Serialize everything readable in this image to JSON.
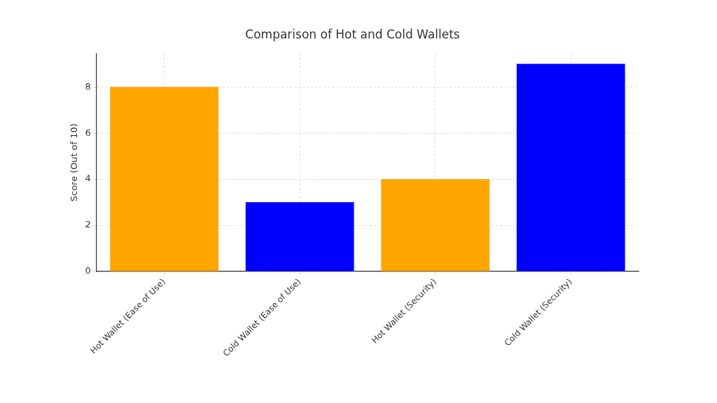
{
  "chart_data": {
    "type": "bar",
    "title": "Comparison of Hot and Cold Wallets",
    "y_label": "Score (Out of 10)",
    "categories": [
      "Hot Wallet (Ease of Use)",
      "Cold Wallet (Ease of Use)",
      "Hot Wallet (Security)",
      "Cold Wallet (Security)"
    ],
    "values": [
      8,
      3,
      4,
      9
    ],
    "colors": [
      "#ffa500",
      "#0000ff",
      "#ffa500",
      "#0000ff"
    ],
    "ylim": [
      0,
      9.45
    ],
    "yticks": [
      0,
      2,
      4,
      6,
      8
    ],
    "grid": true
  }
}
